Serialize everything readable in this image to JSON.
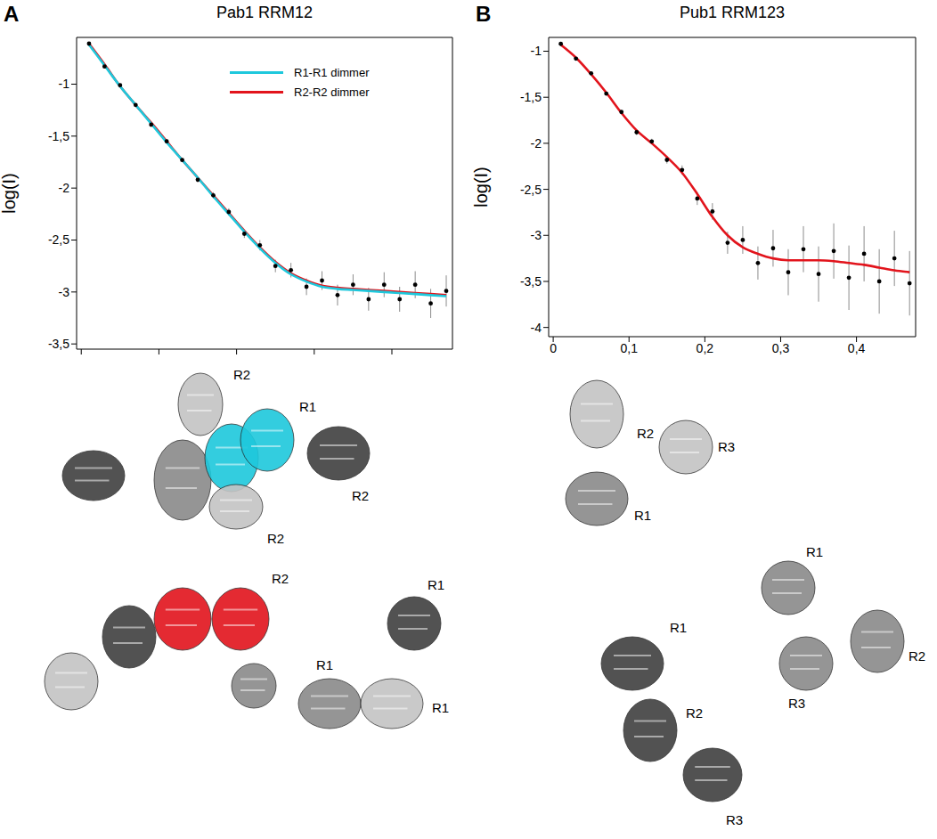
{
  "chart_data": [
    {
      "panel": "A",
      "title": "Pab1 RRM12",
      "type": "scatter",
      "y_label": "log(I)",
      "x": [
        0.01,
        0.03,
        0.05,
        0.07,
        0.09,
        0.11,
        0.13,
        0.15,
        0.17,
        0.19,
        0.21,
        0.23,
        0.25,
        0.27,
        0.29,
        0.31,
        0.33,
        0.35,
        0.37,
        0.39,
        0.41,
        0.43,
        0.45,
        0.47
      ],
      "series": [
        {
          "type": "scatter",
          "marker": "circle",
          "color": "#000000",
          "values": [
            -0.61,
            -0.83,
            -1.01,
            -1.2,
            -1.39,
            -1.55,
            -1.73,
            -1.92,
            -2.07,
            -2.23,
            -2.44,
            -2.55,
            -2.75,
            -2.79,
            -2.95,
            -2.89,
            -3.03,
            -2.93,
            -3.07,
            -2.93,
            -3.07,
            -2.93,
            -3.11,
            -2.99
          ],
          "error": [
            0.01,
            0.01,
            0.01,
            0.015,
            0.015,
            0.02,
            0.02,
            0.025,
            0.03,
            0.035,
            0.04,
            0.05,
            0.06,
            0.07,
            0.08,
            0.09,
            0.1,
            0.1,
            0.11,
            0.12,
            0.12,
            0.13,
            0.14,
            0.15
          ]
        },
        {
          "name": "R1-R1 dimmer",
          "type": "line",
          "color": "#1ec8dc",
          "values": [
            -0.62,
            -0.82,
            -1.02,
            -1.2,
            -1.38,
            -1.56,
            -1.73,
            -1.9,
            -2.08,
            -2.25,
            -2.42,
            -2.58,
            -2.72,
            -2.83,
            -2.9,
            -2.95,
            -2.97,
            -2.98,
            -2.99,
            -3.0,
            -3.01,
            -3.02,
            -3.03,
            -3.04
          ]
        },
        {
          "name": "R2-R2 dimmer",
          "type": "line",
          "color": "#e2141c",
          "values": [
            -0.61,
            -0.81,
            -1.02,
            -1.2,
            -1.37,
            -1.55,
            -1.73,
            -1.9,
            -2.07,
            -2.24,
            -2.41,
            -2.57,
            -2.71,
            -2.82,
            -2.89,
            -2.94,
            -2.96,
            -2.97,
            -2.98,
            -2.99,
            -3.0,
            -3.01,
            -3.02,
            -3.03
          ]
        }
      ],
      "xlim": [
        -0.006,
        0.478
      ],
      "xticks": [
        0,
        0.1,
        0.2,
        0.3,
        0.4
      ],
      "ylim": [
        -3.55,
        -0.55
      ],
      "yticks": [
        {
          "value": -3.5,
          "label": "-3,5"
        },
        -3,
        {
          "value": -2.5,
          "label": "-2,5"
        },
        -2,
        {
          "value": -1.5,
          "label": "-1,5"
        },
        -1
      ],
      "tick_labels": "y",
      "legend": "upper right",
      "grid": false
    },
    {
      "panel": "B",
      "title": "Pub1 RRM123",
      "type": "scatter",
      "y_label": "log(I)",
      "x": [
        0.01,
        0.03,
        0.05,
        0.07,
        0.09,
        0.11,
        0.13,
        0.15,
        0.17,
        0.19,
        0.21,
        0.23,
        0.25,
        0.27,
        0.29,
        0.31,
        0.33,
        0.35,
        0.37,
        0.39,
        0.41,
        0.43,
        0.45,
        0.47
      ],
      "series": [
        {
          "type": "scatter",
          "marker": "circle",
          "color": "#000000",
          "values": [
            -0.92,
            -1.08,
            -1.24,
            -1.46,
            -1.66,
            -1.88,
            -1.98,
            -2.18,
            -2.29,
            -2.6,
            -2.74,
            -3.08,
            -3.05,
            -3.3,
            -3.14,
            -3.4,
            -3.15,
            -3.42,
            -3.17,
            -3.46,
            -3.2,
            -3.5,
            -3.25,
            -3.52
          ],
          "error": [
            0.01,
            0.01,
            0.015,
            0.02,
            0.02,
            0.03,
            0.03,
            0.04,
            0.05,
            0.07,
            0.09,
            0.12,
            0.15,
            0.18,
            0.2,
            0.25,
            0.25,
            0.3,
            0.3,
            0.35,
            0.3,
            0.35,
            0.3,
            0.35
          ]
        },
        {
          "type": "line",
          "color": "#e2141c",
          "values": [
            -0.93,
            -1.07,
            -1.25,
            -1.45,
            -1.67,
            -1.86,
            -2.0,
            -2.15,
            -2.32,
            -2.55,
            -2.8,
            -3.0,
            -3.13,
            -3.2,
            -3.25,
            -3.27,
            -3.27,
            -3.27,
            -3.28,
            -3.3,
            -3.32,
            -3.35,
            -3.38,
            -3.4
          ]
        }
      ],
      "xlim": [
        -0.006,
        0.478
      ],
      "xticks": [
        0,
        {
          "value": 0.1,
          "label": "0,1"
        },
        {
          "value": 0.2,
          "label": "0,2"
        },
        {
          "value": 0.3,
          "label": "0,3"
        },
        {
          "value": 0.4,
          "label": "0,4"
        }
      ],
      "ylim": [
        -4.1,
        -0.85
      ],
      "yticks": [
        -4,
        {
          "value": -3.5,
          "label": "-3,5"
        },
        -3,
        {
          "value": -2.5,
          "label": "-2,5"
        },
        -2,
        {
          "value": -1.5,
          "label": "-1,5"
        },
        -1
      ],
      "grid": false
    }
  ],
  "structures": {
    "A": [
      [
        "R2",
        "R1",
        "R2",
        "R2"
      ],
      [
        "R2",
        "R1",
        "R1",
        "R1"
      ]
    ],
    "B": [
      [
        "R2",
        "R3",
        "R1"
      ],
      [
        "R1",
        "R2",
        "R3"
      ],
      [
        "R1",
        "R2",
        "R3"
      ]
    ]
  }
}
